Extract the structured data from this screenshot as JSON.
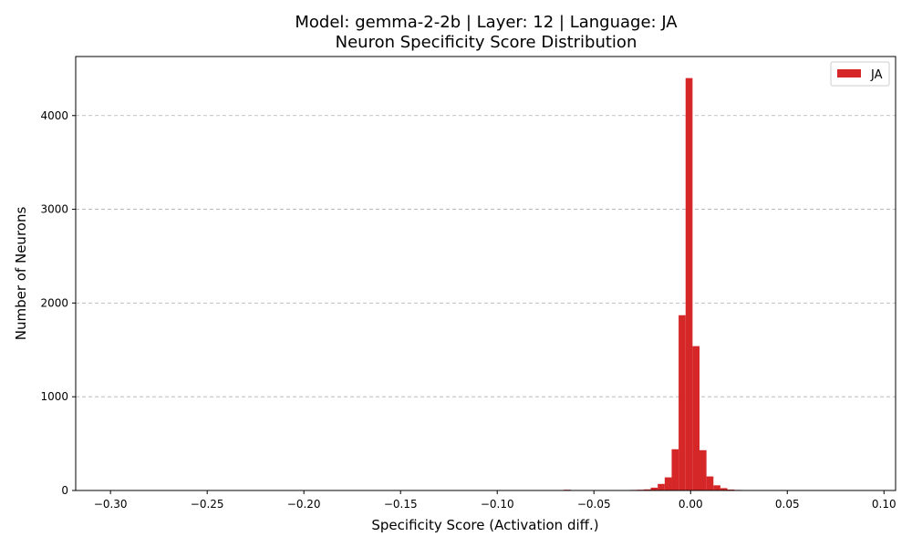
{
  "chart_data": {
    "type": "bar",
    "title": "Model: gemma-2-2b | Layer: 12 | Language: JA",
    "subtitle": "Neuron Specificity Score Distribution",
    "xlabel": "Specificity Score (Activation diff.)",
    "ylabel": "Number of Neurons",
    "xlim": [
      -0.318,
      0.106
    ],
    "ylim": [
      0,
      4630
    ],
    "xticks": [
      -0.3,
      -0.25,
      -0.2,
      -0.15,
      -0.1,
      -0.05,
      0.0,
      0.05,
      0.1
    ],
    "xtick_labels": [
      "−0.30",
      "−0.25",
      "−0.20",
      "−0.15",
      "−0.10",
      "−0.05",
      "0.00",
      "0.05",
      "0.10"
    ],
    "yticks": [
      0,
      1000,
      2000,
      3000,
      4000
    ],
    "ytick_labels": [
      "0",
      "1000",
      "2000",
      "3000",
      "4000"
    ],
    "grid": "y-dashed",
    "legend_position": "top-right",
    "bin_width": 0.0036,
    "series": [
      {
        "name": "JA",
        "color": "#d62728",
        "bins": [
          {
            "x": -0.0656,
            "count": 8
          },
          {
            "x": -0.035,
            "count": 4
          },
          {
            "x": -0.0314,
            "count": 6
          },
          {
            "x": -0.0278,
            "count": 8
          },
          {
            "x": -0.0242,
            "count": 12
          },
          {
            "x": -0.0206,
            "count": 30
          },
          {
            "x": -0.017,
            "count": 70
          },
          {
            "x": -0.0134,
            "count": 140
          },
          {
            "x": -0.0098,
            "count": 440
          },
          {
            "x": -0.0062,
            "count": 1870
          },
          {
            "x": -0.0026,
            "count": 4400
          },
          {
            "x": 0.001,
            "count": 1540
          },
          {
            "x": 0.0046,
            "count": 430
          },
          {
            "x": 0.0082,
            "count": 150
          },
          {
            "x": 0.0118,
            "count": 55
          },
          {
            "x": 0.0154,
            "count": 25
          },
          {
            "x": 0.019,
            "count": 10
          },
          {
            "x": 0.0226,
            "count": 6
          },
          {
            "x": 0.0262,
            "count": 4
          },
          {
            "x": 0.0298,
            "count": 4
          },
          {
            "x": 0.0334,
            "count": 3
          }
        ]
      }
    ]
  }
}
